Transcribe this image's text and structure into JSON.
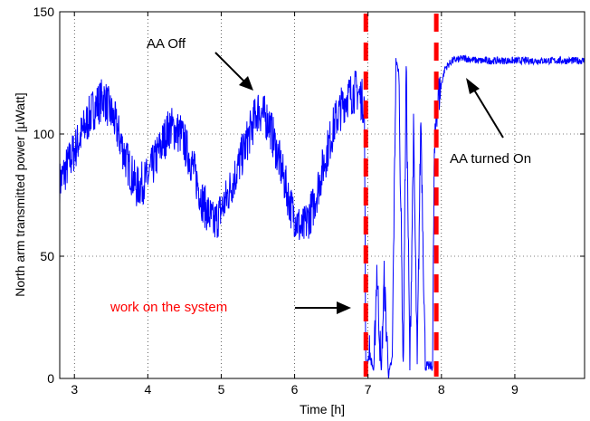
{
  "chart_data": {
    "type": "line",
    "title": "",
    "xlabel": "Time [h]",
    "ylabel": "North arm transmitted power [µWatt]",
    "xlim": [
      2.8,
      9.95
    ],
    "ylim": [
      0,
      150
    ],
    "x_ticks": [
      "3",
      "4",
      "5",
      "6",
      "7",
      "8",
      "9"
    ],
    "y_ticks": [
      "0",
      "50",
      "100",
      "150"
    ],
    "grid": true,
    "line_color": "#0000ff",
    "marker_color": "#ff0000",
    "series": [
      {
        "x": [
          2.8,
          2.95,
          3.1,
          3.25,
          3.4,
          3.55,
          3.7,
          3.85,
          4.0,
          4.15,
          4.3,
          4.45,
          4.6,
          4.75,
          4.9,
          5.05,
          5.2,
          5.35,
          5.5,
          5.65,
          5.8,
          5.95,
          6.1,
          6.25,
          6.4,
          6.55,
          6.7,
          6.85,
          6.9,
          6.95,
          6.97,
          7.02,
          7.08,
          7.12,
          7.18,
          7.22,
          7.28,
          7.33,
          7.38,
          7.42,
          7.48,
          7.52,
          7.57,
          7.62,
          7.67,
          7.72,
          7.78,
          7.85,
          7.88,
          7.9,
          7.93,
          7.98,
          8.05,
          8.15,
          8.3,
          8.5,
          8.8,
          9.1,
          9.4,
          9.7,
          9.95
        ],
        "y": [
          80,
          90,
          100,
          110,
          115,
          105,
          90,
          78,
          82,
          93,
          103,
          100,
          88,
          72,
          63,
          72,
          84,
          97,
          110,
          105,
          88,
          70,
          60,
          70,
          88,
          105,
          115,
          118,
          115,
          112,
          5,
          10,
          3,
          45,
          2,
          40,
          1,
          8,
          130,
          125,
          5,
          128,
          4,
          100,
          5,
          108,
          5,
          5,
          5,
          85,
          110,
          118,
          127,
          130,
          131,
          130,
          130,
          130,
          130,
          130,
          130
        ]
      }
    ],
    "vertical_markers_x": [
      6.97,
      7.93
    ],
    "annotations": [
      {
        "text": "AA Off",
        "color": "#000000"
      },
      {
        "text": "AA turned On",
        "color": "#000000"
      },
      {
        "text": "work on the system",
        "color": "#ff0000"
      }
    ]
  }
}
